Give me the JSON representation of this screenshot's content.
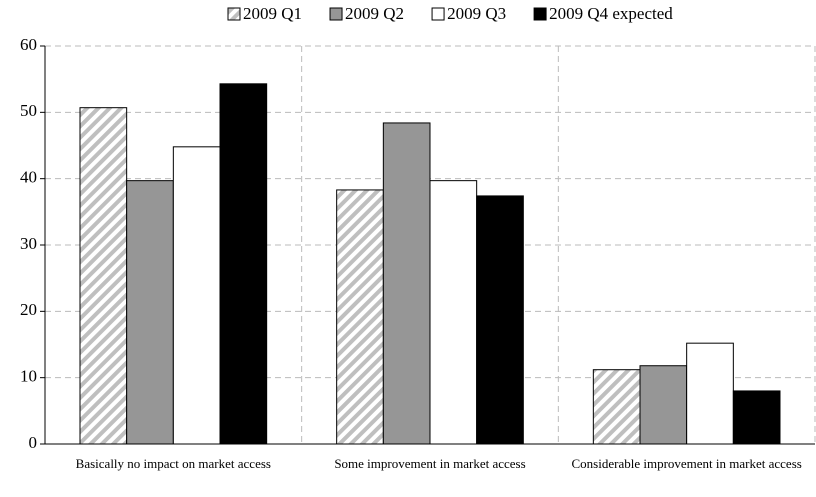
{
  "chart_data": {
    "type": "bar",
    "categories": [
      "Basically no impact on market access",
      "Some improvement in market access",
      "Considerable improvement in market access"
    ],
    "series": [
      {
        "name": "2009 Q1",
        "color": "#bfbfbf",
        "hatch": true,
        "values": [
          50.7,
          38.3,
          11.2
        ]
      },
      {
        "name": "2009 Q2",
        "color": "#969696",
        "values": [
          39.7,
          48.4,
          11.8
        ]
      },
      {
        "name": "2009 Q3",
        "color": "#ffffff",
        "values": [
          44.8,
          39.7,
          15.2
        ]
      },
      {
        "name": "2009 Q4 expected",
        "color": "#000000",
        "values": [
          54.3,
          37.4,
          8.0
        ]
      }
    ],
    "ylim": [
      0,
      60
    ],
    "yticks": [
      0,
      10,
      20,
      30,
      40,
      50,
      60
    ],
    "grid": true,
    "legend": "top"
  }
}
